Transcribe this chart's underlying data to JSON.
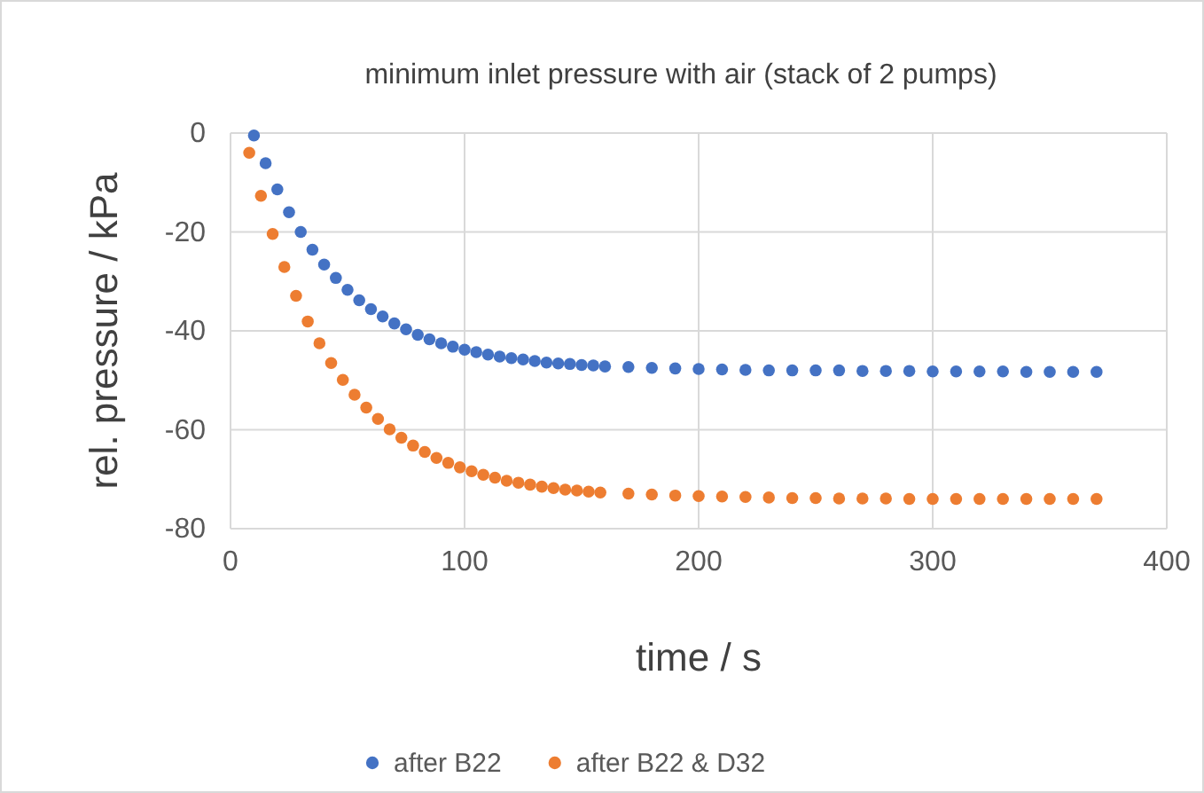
{
  "chart_data": {
    "type": "scatter",
    "title": "minimum inlet pressure with air (stack of 2 pumps)",
    "xlabel": "time / s",
    "ylabel": "rel. pressure / kPa",
    "xlim": [
      0,
      400
    ],
    "xticks": [
      0,
      100,
      200,
      300,
      400
    ],
    "ylim": [
      -80,
      0
    ],
    "yticks": [
      -80,
      -60,
      -40,
      -20,
      0
    ],
    "grid": true,
    "legend": "bottom",
    "marker": "circle",
    "series": [
      {
        "name": "after B22",
        "color": "#4472c4",
        "x": [
          10,
          15,
          20,
          25,
          30,
          35,
          40,
          45,
          50,
          55,
          60,
          65,
          70,
          75,
          80,
          85,
          90,
          95,
          100,
          105,
          110,
          115,
          120,
          125,
          130,
          135,
          140,
          145,
          150,
          155,
          160,
          170,
          180,
          190,
          200,
          210,
          220,
          230,
          240,
          250,
          260,
          270,
          280,
          290,
          300,
          310,
          320,
          330,
          340,
          350,
          360,
          370
        ],
        "values": [
          -0.5,
          -6.1,
          -11.4,
          -16,
          -20,
          -23.6,
          -26.6,
          -29.3,
          -31.7,
          -33.8,
          -35.6,
          -37.1,
          -38.5,
          -39.7,
          -40.8,
          -41.7,
          -42.5,
          -43.2,
          -43.8,
          -44.3,
          -44.8,
          -45.2,
          -45.5,
          -45.8,
          -46.1,
          -46.4,
          -46.6,
          -46.7,
          -46.9,
          -47,
          -47.2,
          -47.3,
          -47.5,
          -47.6,
          -47.7,
          -47.8,
          -47.9,
          -48,
          -48,
          -48,
          -48,
          -48.1,
          -48.1,
          -48.1,
          -48.2,
          -48.2,
          -48.2,
          -48.2,
          -48.3,
          -48.3,
          -48.3,
          -48.3
        ]
      },
      {
        "name": "after B22 & D32",
        "color": "#ed7d31",
        "x": [
          8,
          13,
          18,
          23,
          28,
          33,
          38,
          43,
          48,
          53,
          58,
          63,
          68,
          73,
          78,
          83,
          88,
          93,
          98,
          103,
          108,
          113,
          118,
          123,
          128,
          133,
          138,
          143,
          148,
          153,
          158,
          170,
          180,
          190,
          200,
          210,
          220,
          230,
          240,
          250,
          260,
          270,
          280,
          290,
          300,
          310,
          320,
          330,
          340,
          350,
          360,
          370
        ],
        "values": [
          -4,
          -12.7,
          -20.4,
          -27.1,
          -32.9,
          -38.1,
          -42.5,
          -46.5,
          -49.9,
          -52.9,
          -55.5,
          -57.8,
          -59.9,
          -61.6,
          -63.2,
          -64.5,
          -65.7,
          -66.7,
          -67.6,
          -68.4,
          -69.1,
          -69.7,
          -70.3,
          -70.7,
          -71.1,
          -71.5,
          -71.8,
          -72.1,
          -72.3,
          -72.5,
          -72.7,
          -72.9,
          -73.1,
          -73.3,
          -73.4,
          -73.5,
          -73.6,
          -73.7,
          -73.8,
          -73.8,
          -73.9,
          -73.9,
          -73.9,
          -74,
          -74,
          -74,
          -74,
          -74,
          -74,
          -74,
          -74,
          -74
        ]
      }
    ]
  }
}
